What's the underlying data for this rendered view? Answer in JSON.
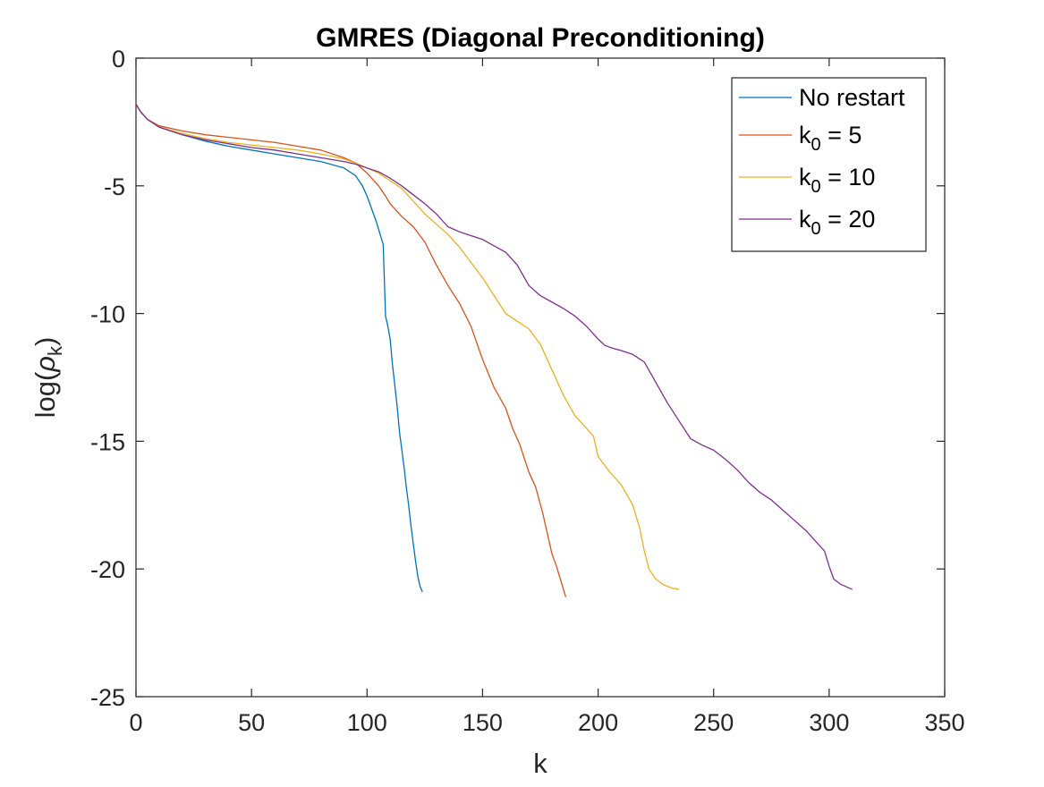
{
  "chart_data": {
    "type": "line",
    "title": "GMRES (Diagonal Preconditioning)",
    "xlabel": "k",
    "ylabel": {
      "main": "log(",
      "symbol": "ρ",
      "subscript": "k",
      "close": ")"
    },
    "xlim": [
      0,
      350
    ],
    "ylim": [
      -25,
      0
    ],
    "xticks": [
      0,
      50,
      100,
      150,
      200,
      250,
      300,
      350
    ],
    "yticks": [
      0,
      -5,
      -10,
      -15,
      -20,
      -25
    ],
    "xtick_labels": [
      "0",
      "50",
      "100",
      "150",
      "200",
      "250",
      "300",
      "350"
    ],
    "ytick_labels": [
      "0",
      "-5",
      "-10",
      "-15",
      "-20",
      "-25"
    ],
    "grid": false,
    "legend_position": "top-right",
    "legend": [
      {
        "text": "No restart",
        "sub": "",
        "rest": ""
      },
      {
        "text": "k",
        "sub": "0",
        "rest": " = 5"
      },
      {
        "text": "k",
        "sub": "0",
        "rest": " = 10"
      },
      {
        "text": "k",
        "sub": "0",
        "rest": " = 20"
      }
    ],
    "series": [
      {
        "color": "#0072BD",
        "x": [
          0,
          2,
          5,
          10,
          20,
          30,
          40,
          50,
          60,
          70,
          80,
          90,
          95,
          98,
          100,
          102,
          104,
          106,
          107,
          108,
          109,
          110,
          110.5,
          111,
          112,
          113,
          114,
          115,
          116,
          117,
          118,
          119,
          120,
          121,
          122,
          123,
          124
        ],
        "y": [
          -1.8,
          -2.1,
          -2.4,
          -2.7,
          -3.0,
          -3.25,
          -3.45,
          -3.6,
          -3.75,
          -3.9,
          -4.05,
          -4.3,
          -4.6,
          -5.0,
          -5.4,
          -5.9,
          -6.4,
          -7.0,
          -7.3,
          -10.1,
          -10.5,
          -11.0,
          -11.5,
          -12.0,
          -12.8,
          -13.6,
          -14.6,
          -15.3,
          -16.0,
          -16.8,
          -17.5,
          -18.3,
          -19.0,
          -19.7,
          -20.3,
          -20.7,
          -20.9
        ]
      },
      {
        "color": "#D95319",
        "x": [
          0,
          2,
          5,
          10,
          20,
          30,
          40,
          50,
          60,
          70,
          80,
          90,
          95,
          100,
          105,
          108,
          110,
          115,
          120,
          125,
          130,
          135,
          140,
          145,
          150,
          155,
          160,
          163,
          166,
          170,
          173,
          176,
          178,
          180,
          182,
          184,
          186
        ],
        "y": [
          -1.8,
          -2.1,
          -2.4,
          -2.65,
          -2.85,
          -3.0,
          -3.1,
          -3.2,
          -3.3,
          -3.45,
          -3.6,
          -3.9,
          -4.1,
          -4.5,
          -5.0,
          -5.4,
          -5.7,
          -6.2,
          -6.6,
          -7.2,
          -8.1,
          -8.9,
          -9.6,
          -10.5,
          -11.8,
          -12.9,
          -13.7,
          -14.5,
          -15.1,
          -16.2,
          -16.8,
          -17.8,
          -18.6,
          -19.4,
          -19.9,
          -20.5,
          -21.1
        ]
      },
      {
        "color": "#EDB120",
        "x": [
          0,
          2,
          5,
          10,
          20,
          30,
          40,
          50,
          60,
          70,
          80,
          90,
          95,
          100,
          105,
          110,
          115,
          120,
          125,
          130,
          135,
          140,
          145,
          150,
          155,
          160,
          165,
          170,
          175,
          180,
          185,
          190,
          195,
          198,
          200,
          205,
          210,
          215,
          218,
          220,
          222,
          225,
          228,
          232,
          235
        ],
        "y": [
          -1.8,
          -2.1,
          -2.4,
          -2.7,
          -2.95,
          -3.15,
          -3.3,
          -3.4,
          -3.5,
          -3.6,
          -3.75,
          -3.95,
          -4.1,
          -4.3,
          -4.5,
          -4.8,
          -5.1,
          -5.6,
          -6.1,
          -6.5,
          -6.9,
          -7.4,
          -8.0,
          -8.6,
          -9.3,
          -10.0,
          -10.3,
          -10.6,
          -11.2,
          -12.2,
          -13.2,
          -14.0,
          -14.5,
          -14.8,
          -15.6,
          -16.2,
          -16.7,
          -17.5,
          -18.4,
          -19.3,
          -20.0,
          -20.4,
          -20.6,
          -20.75,
          -20.8
        ]
      },
      {
        "color": "#7E2F8E",
        "x": [
          0,
          2,
          5,
          10,
          20,
          30,
          40,
          50,
          60,
          70,
          80,
          90,
          95,
          100,
          105,
          110,
          115,
          120,
          125,
          130,
          135,
          140,
          145,
          150,
          155,
          160,
          165,
          170,
          175,
          180,
          185,
          190,
          195,
          200,
          203,
          206,
          210,
          215,
          220,
          225,
          230,
          235,
          240,
          245,
          250,
          255,
          260,
          265,
          270,
          275,
          280,
          285,
          290,
          295,
          298,
          300,
          302,
          305,
          310
        ],
        "y": [
          -1.8,
          -2.1,
          -2.4,
          -2.7,
          -3.0,
          -3.2,
          -3.35,
          -3.5,
          -3.6,
          -3.75,
          -3.9,
          -4.05,
          -4.15,
          -4.3,
          -4.45,
          -4.7,
          -5.0,
          -5.35,
          -5.7,
          -6.1,
          -6.6,
          -6.8,
          -6.95,
          -7.1,
          -7.35,
          -7.6,
          -8.1,
          -8.9,
          -9.3,
          -9.55,
          -9.8,
          -10.1,
          -10.5,
          -11.0,
          -11.25,
          -11.35,
          -11.45,
          -11.6,
          -11.9,
          -12.7,
          -13.5,
          -14.2,
          -14.9,
          -15.15,
          -15.35,
          -15.7,
          -16.1,
          -16.6,
          -17.0,
          -17.3,
          -17.7,
          -18.1,
          -18.5,
          -19.0,
          -19.3,
          -19.9,
          -20.4,
          -20.6,
          -20.8
        ]
      }
    ]
  }
}
